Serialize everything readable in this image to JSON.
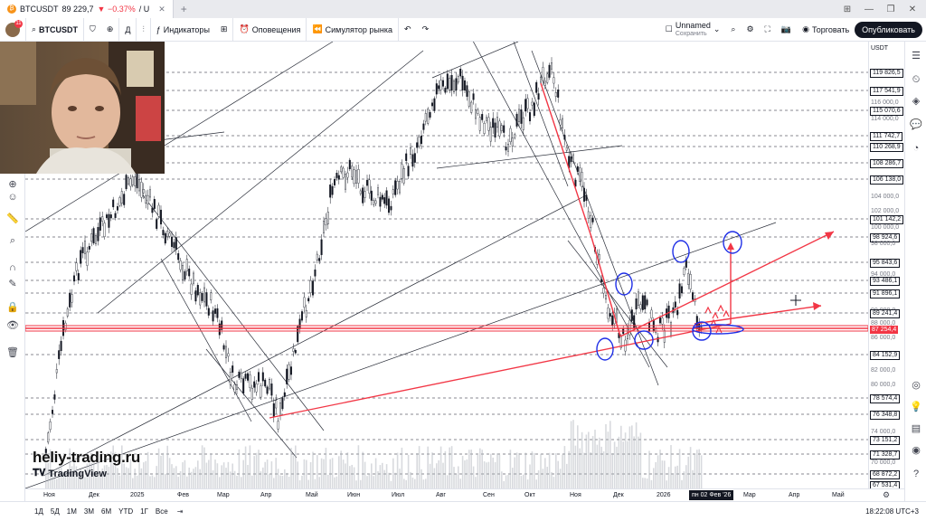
{
  "browser": {
    "tab_symbol": "BTCUSDT",
    "tab_price": "89 229,7",
    "tab_change": "▼ −0.37%",
    "tab_extra": "/ U",
    "new_tab": "+"
  },
  "toolbar": {
    "avatar_badge": "11",
    "symbol": "BTCUSDT",
    "interval": "Д",
    "indicators_label": "Индикаторы",
    "alerts_label": "Оповещения",
    "replay_label": "Симулятор рынка",
    "layout_name": "Unnamed",
    "layout_status": "Сохранить",
    "trade_label": "Торговать",
    "publish_label": "Опубликовать"
  },
  "price_scale": {
    "currency": "USDT",
    "levels": [
      {
        "label": "119 826,5",
        "style": "box"
      },
      {
        "label": "117 541,9",
        "style": "box"
      },
      {
        "label": "116 000,0",
        "style": "grey"
      },
      {
        "label": "115 070,6",
        "style": "box"
      },
      {
        "label": "114 000,0",
        "style": "grey"
      },
      {
        "label": "111 742,7",
        "style": "box"
      },
      {
        "label": "110 268,9",
        "style": "box"
      },
      {
        "label": "108 286,7",
        "style": "box"
      },
      {
        "label": "106 138,0",
        "style": "box"
      },
      {
        "label": "104 000,0",
        "style": "grey"
      },
      {
        "label": "102 000,0",
        "style": "grey"
      },
      {
        "label": "101 142,2",
        "style": "box"
      },
      {
        "label": "100 000,0",
        "style": "grey"
      },
      {
        "label": "98 924,6",
        "style": "box"
      },
      {
        "label": "98 000,0",
        "style": "grey"
      },
      {
        "label": "95 843,6",
        "style": "box"
      },
      {
        "label": "94 000,0",
        "style": "grey"
      },
      {
        "label": "93 486,1",
        "style": "box"
      },
      {
        "label": "91 896,1",
        "style": "box"
      },
      {
        "label": "90 000,0",
        "style": "grey"
      },
      {
        "label": "89 241,4",
        "style": "box"
      },
      {
        "label": "88 000,0",
        "style": "grey"
      },
      {
        "label": "87 254,4",
        "style": "red"
      },
      {
        "label": "86 000,0",
        "style": "grey"
      },
      {
        "label": "84 152,9",
        "style": "box"
      },
      {
        "label": "82 000,0",
        "style": "grey"
      },
      {
        "label": "80 000,0",
        "style": "grey"
      },
      {
        "label": "78 574,4",
        "style": "box"
      },
      {
        "label": "76 348,8",
        "style": "box"
      },
      {
        "label": "74 000,0",
        "style": "grey"
      },
      {
        "label": "73 151,2",
        "style": "box"
      },
      {
        "label": "71 328,7",
        "style": "box"
      },
      {
        "label": "70 000,0",
        "style": "grey"
      },
      {
        "label": "68 872,2",
        "style": "box"
      },
      {
        "label": "67 531,4",
        "style": "box"
      }
    ]
  },
  "time_scale": {
    "labels": [
      "Ноя",
      "Дек",
      "2025",
      "Фев",
      "Мар",
      "Апр",
      "Май",
      "Июн",
      "Июл",
      "Авг",
      "Сен",
      "Окт",
      "Ноя",
      "Дек",
      "2026",
      "пн 02 Фев '26",
      "Мар",
      "Апр",
      "Май"
    ],
    "highlight_index": 15
  },
  "bottom_bar": {
    "ranges": [
      "1Д",
      "5Д",
      "1М",
      "3М",
      "6М",
      "YTD",
      "1Г",
      "Все"
    ],
    "clock": "18:22:08 UTC+3"
  },
  "watermark": {
    "site": "heliy-trading.ru",
    "brand": "TradingView"
  },
  "colors": {
    "accent_red": "#f23645",
    "candle_dark": "#131722",
    "annotation_blue": "#1e2ee6"
  }
}
